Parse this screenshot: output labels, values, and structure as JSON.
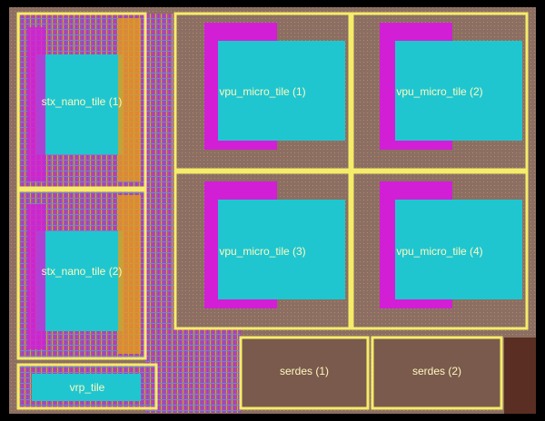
{
  "tiles": [
    {
      "label": "stx_nano_tile (1)"
    },
    {
      "label": "stx_nano_tile (2)"
    },
    {
      "label": "vpu_micro_tile (1)"
    },
    {
      "label": "vpu_micro_tile (2)"
    },
    {
      "label": "vpu_micro_tile (3)"
    },
    {
      "label": "vpu_micro_tile (4)"
    },
    {
      "label": "vrp_tile"
    },
    {
      "label": "serdes (1)"
    },
    {
      "label": "serdes (2)"
    }
  ]
}
